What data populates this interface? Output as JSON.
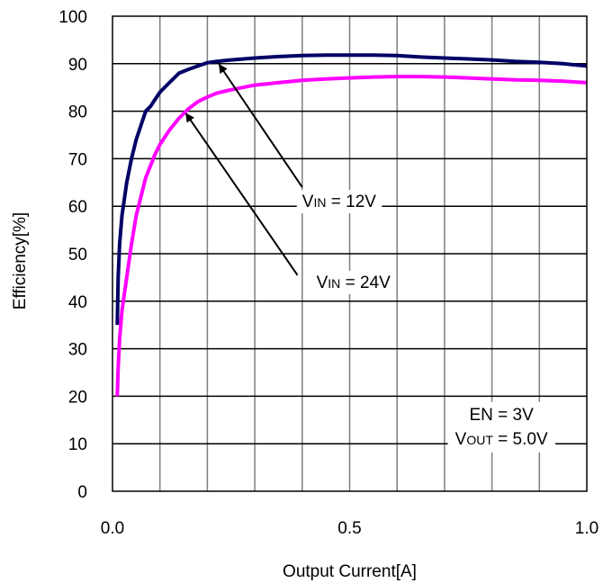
{
  "chart_data": {
    "type": "line",
    "xlabel": "Output Current[A]",
    "ylabel": "Efficiency[%]",
    "xlim": [
      0,
      1.0
    ],
    "ylim": [
      0,
      100
    ],
    "x_ticks": [
      0.0,
      0.5,
      1.0
    ],
    "x_tick_labels": [
      "0.0",
      "0.5",
      "1.0"
    ],
    "x_grid_step": 0.1,
    "y_ticks": [
      0,
      10,
      20,
      30,
      40,
      50,
      60,
      70,
      80,
      90,
      100
    ],
    "y_tick_labels": [
      "0",
      "10",
      "20",
      "30",
      "40",
      "50",
      "60",
      "70",
      "80",
      "90",
      "100"
    ],
    "grid": true,
    "series": [
      {
        "name": "VIN = 12V",
        "color": "#000066",
        "points": [
          [
            0.01,
            35
          ],
          [
            0.012,
            45
          ],
          [
            0.015,
            52
          ],
          [
            0.02,
            58
          ],
          [
            0.03,
            65
          ],
          [
            0.04,
            70
          ],
          [
            0.05,
            74
          ],
          [
            0.06,
            77
          ],
          [
            0.07,
            80
          ],
          [
            0.08,
            81
          ],
          [
            0.09,
            82.5
          ],
          [
            0.1,
            84
          ],
          [
            0.12,
            86
          ],
          [
            0.14,
            88
          ],
          [
            0.16,
            88.8
          ],
          [
            0.18,
            89.5
          ],
          [
            0.2,
            90.2
          ],
          [
            0.22,
            90.5
          ],
          [
            0.25,
            90.8
          ],
          [
            0.3,
            91.2
          ],
          [
            0.35,
            91.5
          ],
          [
            0.4,
            91.7
          ],
          [
            0.45,
            91.8
          ],
          [
            0.5,
            91.8
          ],
          [
            0.55,
            91.8
          ],
          [
            0.6,
            91.7
          ],
          [
            0.65,
            91.4
          ],
          [
            0.7,
            91.2
          ],
          [
            0.75,
            91.0
          ],
          [
            0.8,
            90.8
          ],
          [
            0.85,
            90.5
          ],
          [
            0.9,
            90.3
          ],
          [
            0.95,
            90.0
          ],
          [
            1.0,
            89.5
          ]
        ]
      },
      {
        "name": "VIN = 24V",
        "color": "#ff00ff",
        "points": [
          [
            0.01,
            20
          ],
          [
            0.012,
            26
          ],
          [
            0.015,
            32
          ],
          [
            0.02,
            38
          ],
          [
            0.03,
            45
          ],
          [
            0.04,
            52
          ],
          [
            0.05,
            58
          ],
          [
            0.06,
            62
          ],
          [
            0.07,
            66
          ],
          [
            0.08,
            68.5
          ],
          [
            0.09,
            71
          ],
          [
            0.1,
            73
          ],
          [
            0.12,
            76
          ],
          [
            0.14,
            78.5
          ],
          [
            0.16,
            80.5
          ],
          [
            0.18,
            82
          ],
          [
            0.2,
            83
          ],
          [
            0.22,
            83.8
          ],
          [
            0.25,
            84.5
          ],
          [
            0.3,
            85.5
          ],
          [
            0.35,
            86.0
          ],
          [
            0.4,
            86.5
          ],
          [
            0.45,
            86.8
          ],
          [
            0.5,
            87.0
          ],
          [
            0.55,
            87.2
          ],
          [
            0.6,
            87.3
          ],
          [
            0.65,
            87.3
          ],
          [
            0.7,
            87.2
          ],
          [
            0.75,
            87.0
          ],
          [
            0.8,
            86.8
          ],
          [
            0.85,
            86.6
          ],
          [
            0.9,
            86.5
          ],
          [
            0.95,
            86.3
          ],
          [
            1.0,
            86.0
          ]
        ]
      }
    ],
    "annotations": [
      {
        "id": "vin12",
        "main": "V",
        "sub": "IN",
        "rest": " = 12V",
        "label_at": [
          0.4,
          60
        ],
        "arrow_from": [
          0.4,
          64
        ],
        "arrow_to": [
          0.225,
          89.8
        ]
      },
      {
        "id": "vin24",
        "main": "V",
        "sub": "IN",
        "rest": " = 24V",
        "label_at": [
          0.43,
          43
        ],
        "arrow_from": [
          0.39,
          45.5
        ],
        "arrow_to": [
          0.155,
          79.5
        ]
      }
    ],
    "conditions": [
      {
        "main": "EN = 3V",
        "sub": "",
        "rest": ""
      },
      {
        "main": "V",
        "sub": "OUT",
        "rest": " = 5.0V"
      }
    ],
    "conditions_anchor": [
      0.82,
      15
    ]
  }
}
